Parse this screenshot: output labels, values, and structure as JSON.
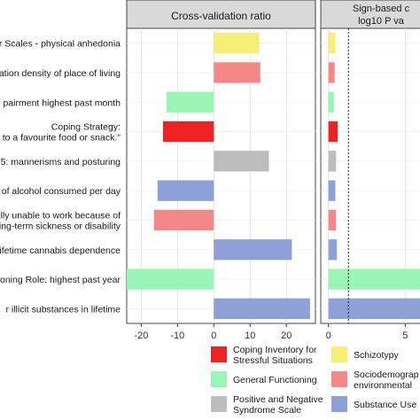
{
  "chart_data": [
    {
      "type": "bar",
      "orientation": "horizontal",
      "title": "Cross-validation ratio",
      "xlabel": "",
      "ylabel": "",
      "xlim": [
        -24,
        28
      ],
      "x_ticks": [
        "-20",
        "-10",
        "0",
        "10",
        "20"
      ],
      "grid": true,
      "categories": [
        "r Scales - physical anhedonia",
        "ation density of place of living",
        "pairment highest past month",
        "Coping Strategy:",
        "5: mannerisms and posturing",
        "of alcohol consumed per day",
        "lly unable to work because of",
        "ifetime cannabis dependence",
        "oning Role: highest past year",
        "r illicit substances in lifetime"
      ],
      "category_second_lines": [
        "",
        "",
        "",
        "to a favourite food or snack.\"",
        "",
        "",
        "ing-term sickness or disability",
        "",
        "",
        ""
      ],
      "values": [
        12.5,
        12.8,
        -13,
        -14,
        15.2,
        -15.5,
        -16.5,
        21.5,
        -24,
        26.5
      ],
      "groups": [
        "Schizotypy",
        "Sociodemographic",
        "General Functioning",
        "Coping Inventory",
        "Positive and Negative",
        "Substance Use",
        "Sociodemographic",
        "Substance Use",
        "General Functioning",
        "Substance Use"
      ]
    },
    {
      "type": "bar",
      "orientation": "horizontal",
      "title": "Sign-based c",
      "subtitle": "log10 P va",
      "xlim": [
        -0.5,
        7
      ],
      "x_ticks": [
        "0",
        "5"
      ],
      "threshold_line": 1.3,
      "values": [
        0.45,
        0.4,
        0.35,
        0.6,
        0.5,
        0.45,
        0.5,
        0.55,
        7,
        7
      ],
      "groups": [
        "Schizotypy",
        "Sociodemographic",
        "General Functioning",
        "Coping Inventory",
        "Positive and Negative",
        "Substance Use",
        "Sociodemographic",
        "Substance Use",
        "General Functioning",
        "Substance Use"
      ]
    }
  ],
  "legend": [
    {
      "key": "Coping Inventory",
      "lines": [
        "Coping Inventory for",
        "Stressful Situations"
      ],
      "color": "#ee2222"
    },
    {
      "key": "General Functioning",
      "lines": [
        "General Functioning"
      ],
      "color": "#99f5b3"
    },
    {
      "key": "Positive and Negative",
      "lines": [
        "Positive and Negative",
        "Syndrome Scale"
      ],
      "color": "#bcbcbc"
    },
    {
      "key": "Schizotypy",
      "lines": [
        "Schizotypy"
      ],
      "color": "#f5f075"
    },
    {
      "key": "Sociodemographic",
      "lines": [
        "Sociodemograp",
        "environmental"
      ],
      "color": "#f48888"
    },
    {
      "key": "Substance Use",
      "lines": [
        "Substance Use"
      ],
      "color": "#8da0d8"
    }
  ]
}
